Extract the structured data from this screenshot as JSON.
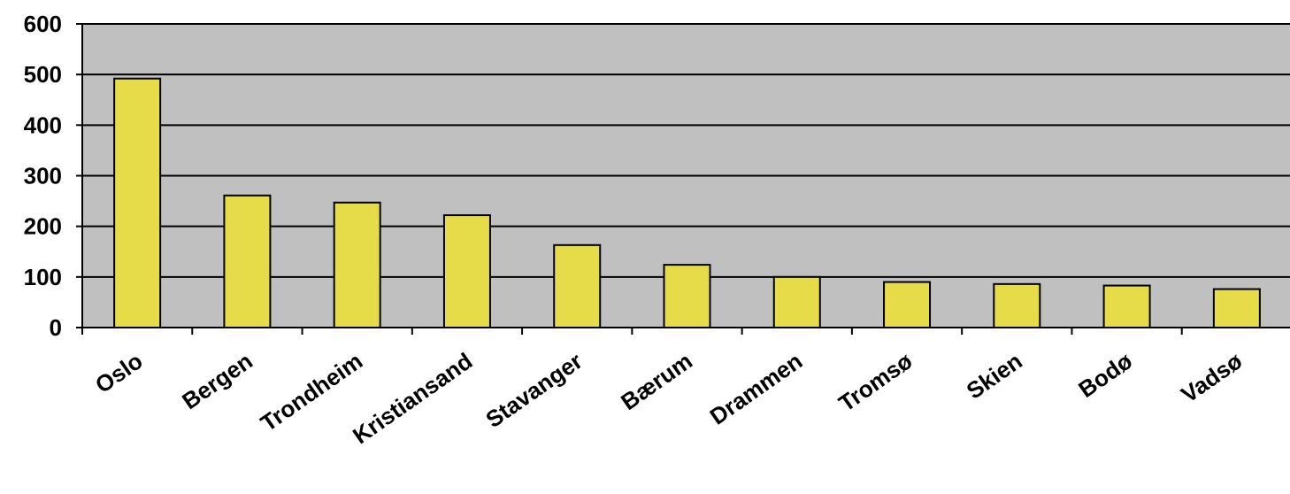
{
  "chart_data": {
    "type": "bar",
    "categories": [
      "Oslo",
      "Bergen",
      "Trondheim",
      "Kristiansand",
      "Stavanger",
      "Bærum",
      "Drammen",
      "Tromsø",
      "Skien",
      "Bodø",
      "Vadsø"
    ],
    "values": [
      492,
      261,
      247,
      222,
      163,
      124,
      100,
      90,
      86,
      83,
      76
    ],
    "ylim": [
      0,
      600
    ],
    "yticks": [
      0,
      100,
      200,
      300,
      400,
      500,
      600
    ],
    "title": "",
    "xlabel": "",
    "ylabel": "",
    "grid": true,
    "colors": {
      "bar": "#e6dc4a",
      "plot_background": "#c0c0c0",
      "grid": "#000000"
    }
  }
}
